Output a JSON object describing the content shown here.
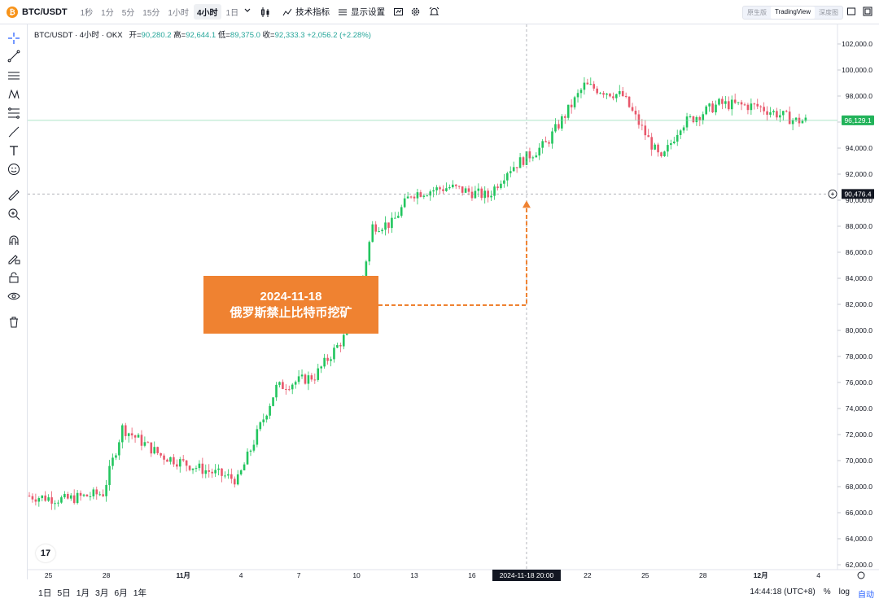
{
  "toolbar": {
    "symbol": "BTC/USDT",
    "coin_glyph": "₿",
    "intervals": [
      "1秒",
      "1分",
      "5分",
      "15分",
      "1小时",
      "4小时",
      "1日"
    ],
    "active_interval": "4小时",
    "indicators_label": "技术指标",
    "display_settings_label": "显示设置",
    "views": [
      "原生版",
      "TradingView",
      "深度图"
    ],
    "active_view": "TradingView"
  },
  "legend": {
    "title": "BTC/USDT · 4小时 · OKX",
    "open_label": "开=",
    "open": "90,280.2",
    "high_label": "高=",
    "high": "92,644.1",
    "low_label": "低=",
    "low": "89,375.0",
    "close_label": "收=",
    "close": "92,333.3",
    "change": "+2,056.2 (+2.28%)"
  },
  "price_axis": {
    "ticks": [
      "102,000.0",
      "100,000.0",
      "98,000.0",
      "96,000.0",
      "94,000.0",
      "92,000.0",
      "90,000.0",
      "88,000.0",
      "86,000.0",
      "84,000.0",
      "82,000.0",
      "80,000.0",
      "78,000.0",
      "76,000.0",
      "74,000.0",
      "72,000.0",
      "70,000.0",
      "68,000.0",
      "66,000.0",
      "64,000.0",
      "62,000.0"
    ],
    "last_price": "96,129.1",
    "crosshair_price": "90,476.4"
  },
  "time_axis": {
    "ticks": [
      "25",
      "28",
      "11月",
      "4",
      "7",
      "10",
      "13",
      "16",
      "2024-11-18  20:00",
      "22",
      "25",
      "28",
      "12月",
      "4"
    ],
    "crosshair_time": "2024-11-18  20:00"
  },
  "annotation": {
    "date": "2024-11-18",
    "text": "俄罗斯禁止比特币挖矿"
  },
  "bottom": {
    "ranges": [
      "1日",
      "5日",
      "1月",
      "3月",
      "6月",
      "1年"
    ],
    "clock": "14:44:18 (UTC+8)",
    "percent": "%",
    "log": "log",
    "auto": "自动"
  },
  "colors": {
    "up": "#26a69a",
    "up_candle": "#22c55e",
    "down_candle": "#e8576b",
    "accent": "#ef8231",
    "last_price_bg": "#22b35a"
  },
  "chart_data": {
    "type": "candlestick",
    "timeframe": "4h",
    "x_range": [
      "2024-10-24",
      "2024-12-04"
    ],
    "ylim": [
      62000,
      102000
    ],
    "approx_daily_close": [
      {
        "x": "2024-10-24",
        "y": 67300
      },
      {
        "x": "2024-10-26",
        "y": 67000
      },
      {
        "x": "2024-10-28",
        "y": 67500
      },
      {
        "x": "2024-10-29",
        "y": 72500
      },
      {
        "x": "2024-10-31",
        "y": 70400
      },
      {
        "x": "2024-11-02",
        "y": 69400
      },
      {
        "x": "2024-11-04",
        "y": 68500
      },
      {
        "x": "2024-11-06",
        "y": 75600
      },
      {
        "x": "2024-11-08",
        "y": 76500
      },
      {
        "x": "2024-11-10",
        "y": 80400
      },
      {
        "x": "2024-11-11",
        "y": 88000
      },
      {
        "x": "2024-11-12",
        "y": 88200
      },
      {
        "x": "2024-11-13",
        "y": 90500
      },
      {
        "x": "2024-11-15",
        "y": 91000
      },
      {
        "x": "2024-11-17",
        "y": 90300
      },
      {
        "x": "2024-11-18",
        "y": 92300
      },
      {
        "x": "2024-11-20",
        "y": 94300
      },
      {
        "x": "2024-11-22",
        "y": 98800
      },
      {
        "x": "2024-11-24",
        "y": 98000
      },
      {
        "x": "2024-11-26",
        "y": 93000
      },
      {
        "x": "2024-11-27",
        "y": 95800
      },
      {
        "x": "2024-11-29",
        "y": 97400
      },
      {
        "x": "2024-12-01",
        "y": 97200
      },
      {
        "x": "2024-12-03",
        "y": 96100
      }
    ]
  }
}
